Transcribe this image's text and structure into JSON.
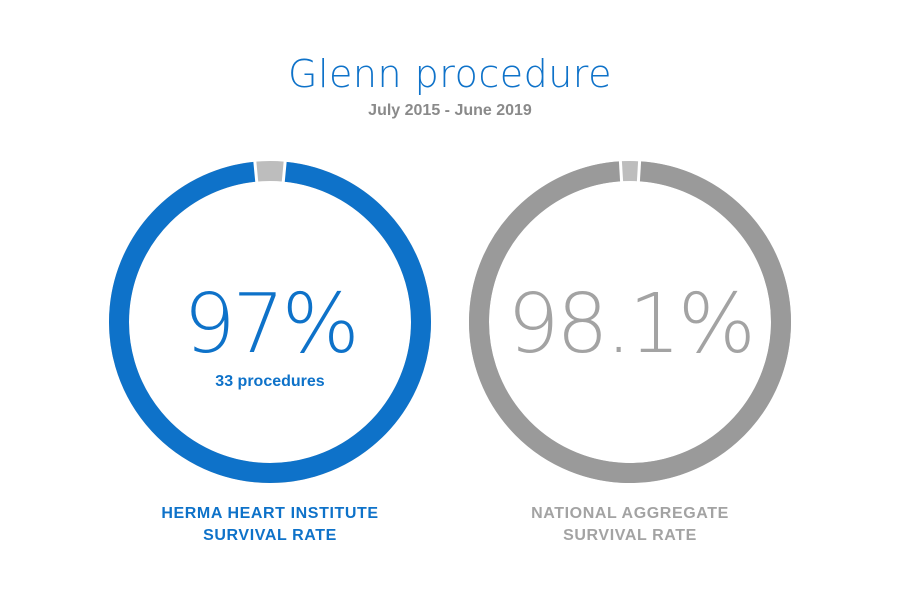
{
  "header": {
    "title": "Glenn procedure",
    "subtitle": "July 2015 - June 2019"
  },
  "colors": {
    "blue": "#0e72c9",
    "gray_ring": "#9a9a9a",
    "gray_text": "#a3a3a3",
    "gap": "#bdbdbd"
  },
  "chart_data": {
    "type": "pie",
    "charts": [
      {
        "value_percent": 97,
        "value_label": "97%",
        "detail": "33 procedures",
        "label_line1": "HERMA HEART INSTITUTE",
        "label_line2": "SURVIVAL RATE"
      },
      {
        "value_percent": 98.1,
        "value_label": "98.1%",
        "detail": "",
        "label_line1": "NATIONAL AGGREGATE",
        "label_line2": "SURVIVAL RATE"
      }
    ]
  }
}
